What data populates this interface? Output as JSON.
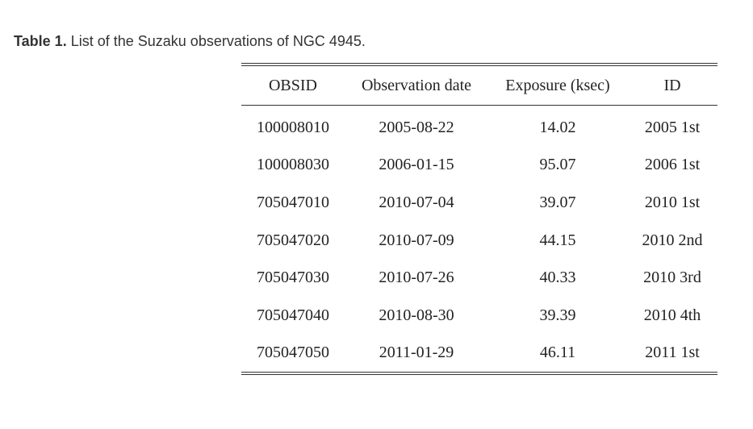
{
  "caption": {
    "label": "Table 1.",
    "text": "List of the Suzaku observations of NGC 4945."
  },
  "table": {
    "headers": [
      "OBSID",
      "Observation date",
      "Exposure (ksec)",
      "ID"
    ],
    "rows": [
      [
        "100008010",
        "2005-08-22",
        "14.02",
        "2005 1st"
      ],
      [
        "100008030",
        "2006-01-15",
        "95.07",
        "2006 1st"
      ],
      [
        "705047010",
        "2010-07-04",
        "39.07",
        "2010 1st"
      ],
      [
        "705047020",
        "2010-07-09",
        "44.15",
        "2010 2nd"
      ],
      [
        "705047030",
        "2010-07-26",
        "40.33",
        "2010 3rd"
      ],
      [
        "705047040",
        "2010-08-30",
        "39.39",
        "2010 4th"
      ],
      [
        "705047050",
        "2011-01-29",
        "46.11",
        "2011 1st"
      ]
    ]
  }
}
